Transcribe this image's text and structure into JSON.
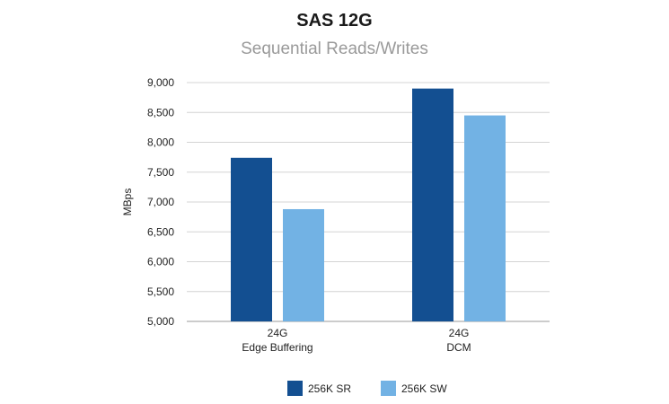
{
  "chart_data": {
    "type": "bar",
    "title": "SAS 12G",
    "subtitle": "Sequential Reads/Writes",
    "ylabel": "MBps",
    "xlabel": "",
    "ylim": [
      5000,
      9000
    ],
    "yticks": [
      5000,
      5500,
      6000,
      6500,
      7000,
      7500,
      8000,
      8500,
      9000
    ],
    "ytick_labels": [
      "5,000",
      "5,500",
      "6,000",
      "6,500",
      "7,000",
      "7,500",
      "8,000",
      "8,500",
      "9,000"
    ],
    "categories": [
      {
        "line1": "24G",
        "line2": "Edge Buffering"
      },
      {
        "line1": "24G",
        "line2": "DCM"
      }
    ],
    "series": [
      {
        "name": "256K SR",
        "color": "#134f91",
        "values": [
          7740,
          8900
        ]
      },
      {
        "name": "256K SW",
        "color": "#72b2e4",
        "values": [
          6880,
          8450
        ]
      }
    ],
    "grid": true,
    "legend": "bottom-center"
  }
}
